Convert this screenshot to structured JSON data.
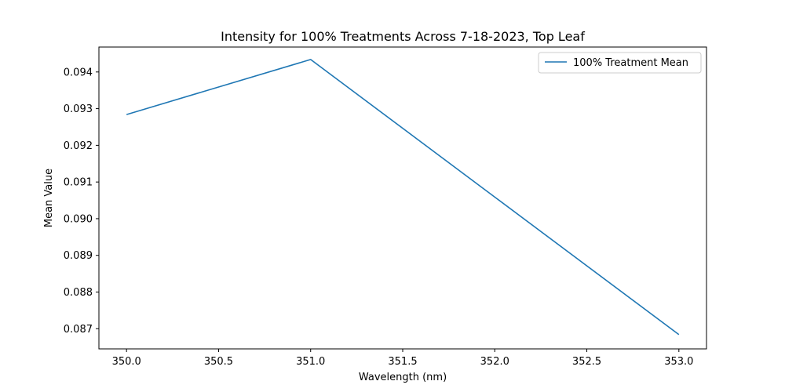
{
  "chart_data": {
    "type": "line",
    "title": "Intensity for 100% Treatments Across 7-18-2023, Top Leaf",
    "xlabel": "Wavelength (nm)",
    "ylabel": "Mean Value",
    "xlim": [
      349.85,
      353.15
    ],
    "ylim": [
      0.08645,
      0.09468
    ],
    "x_ticks": [
      350.0,
      350.5,
      351.0,
      351.5,
      352.0,
      352.5,
      353.0
    ],
    "x_tick_labels": [
      "350.0",
      "350.5",
      "351.0",
      "351.5",
      "352.0",
      "352.5",
      "353.0"
    ],
    "y_ticks": [
      0.087,
      0.088,
      0.089,
      0.09,
      0.091,
      0.092,
      0.093,
      0.094
    ],
    "y_tick_labels": [
      "0.087",
      "0.088",
      "0.089",
      "0.090",
      "0.091",
      "0.092",
      "0.093",
      "0.094"
    ],
    "grid": false,
    "legend_position": "top-right",
    "series": [
      {
        "name": "100% Treatment Mean",
        "color": "#1f77b4",
        "x": [
          350,
          351,
          352,
          353
        ],
        "y": [
          0.09284,
          0.09434,
          0.09059,
          0.08684
        ]
      }
    ]
  }
}
